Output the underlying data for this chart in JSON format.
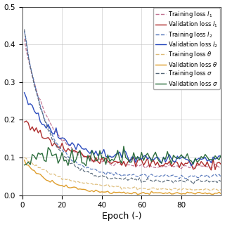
{
  "xlabel": "Epoch (-)",
  "xlim": [
    0,
    100
  ],
  "ylim": [
    0,
    0.5
  ],
  "yticks": [
    0,
    0.1,
    0.2,
    0.3,
    0.4,
    0.5
  ],
  "xticks": [
    0,
    20,
    40,
    60,
    80
  ],
  "n_epochs": 100,
  "legend_entries": [
    {
      "label": "Training loss $l_1$",
      "color": "#c07090",
      "ls": "dashed",
      "lw": 1.0
    },
    {
      "label": "Validation loss $l_1$",
      "color": "#aa2222",
      "ls": "solid",
      "lw": 1.0
    },
    {
      "label": "Training loss $l_2$",
      "color": "#5577bb",
      "ls": "dashed",
      "lw": 1.0
    },
    {
      "label": "Validation loss $l_2$",
      "color": "#2244bb",
      "ls": "solid",
      "lw": 1.0
    },
    {
      "label": "Training loss $\\theta$",
      "color": "#ddbb77",
      "ls": "dashed",
      "lw": 1.0
    },
    {
      "label": "Validation loss $\\theta$",
      "color": "#dd9922",
      "ls": "solid",
      "lw": 1.0
    },
    {
      "label": "Training loss $\\sigma$",
      "color": "#556677",
      "ls": "dashed",
      "lw": 1.0
    },
    {
      "label": "Validation loss $\\sigma$",
      "color": "#226633",
      "ls": "solid",
      "lw": 1.0
    }
  ],
  "curves": [
    {
      "idx": 0,
      "start": 0.41,
      "end": 0.075,
      "noise": 0.003,
      "color": "#c07090",
      "ls": "dashed",
      "lw": 0.9,
      "k": 8.0
    },
    {
      "idx": 1,
      "start": 0.2,
      "end": 0.08,
      "noise": 0.007,
      "color": "#aa2222",
      "ls": "solid",
      "lw": 1.0,
      "k": 5.0
    },
    {
      "idx": 2,
      "start": 0.44,
      "end": 0.05,
      "noise": 0.003,
      "color": "#5577bb",
      "ls": "dashed",
      "lw": 0.9,
      "k": 9.0
    },
    {
      "idx": 3,
      "start": 0.27,
      "end": 0.095,
      "noise": 0.006,
      "color": "#2244bb",
      "ls": "solid",
      "lw": 1.0,
      "k": 6.0
    },
    {
      "idx": 4,
      "start": 0.1,
      "end": 0.014,
      "noise": 0.002,
      "color": "#ddbb77",
      "ls": "dashed",
      "lw": 0.9,
      "k": 5.0
    },
    {
      "idx": 5,
      "start": 0.09,
      "end": 0.004,
      "noise": 0.002,
      "color": "#dd9922",
      "ls": "solid",
      "lw": 1.0,
      "k": 7.0
    },
    {
      "idx": 6,
      "start": 0.44,
      "end": 0.038,
      "noise": 0.003,
      "color": "#556677",
      "ls": "dashed",
      "lw": 0.9,
      "k": 9.0
    },
    {
      "idx": 7,
      "start": 0.08,
      "end": 0.1,
      "noise": 0.01,
      "color": "#226633",
      "ls": "solid",
      "lw": 1.0,
      "k": 1.0
    }
  ],
  "background_color": "#ffffff",
  "grid_color": "#bbbbbb"
}
